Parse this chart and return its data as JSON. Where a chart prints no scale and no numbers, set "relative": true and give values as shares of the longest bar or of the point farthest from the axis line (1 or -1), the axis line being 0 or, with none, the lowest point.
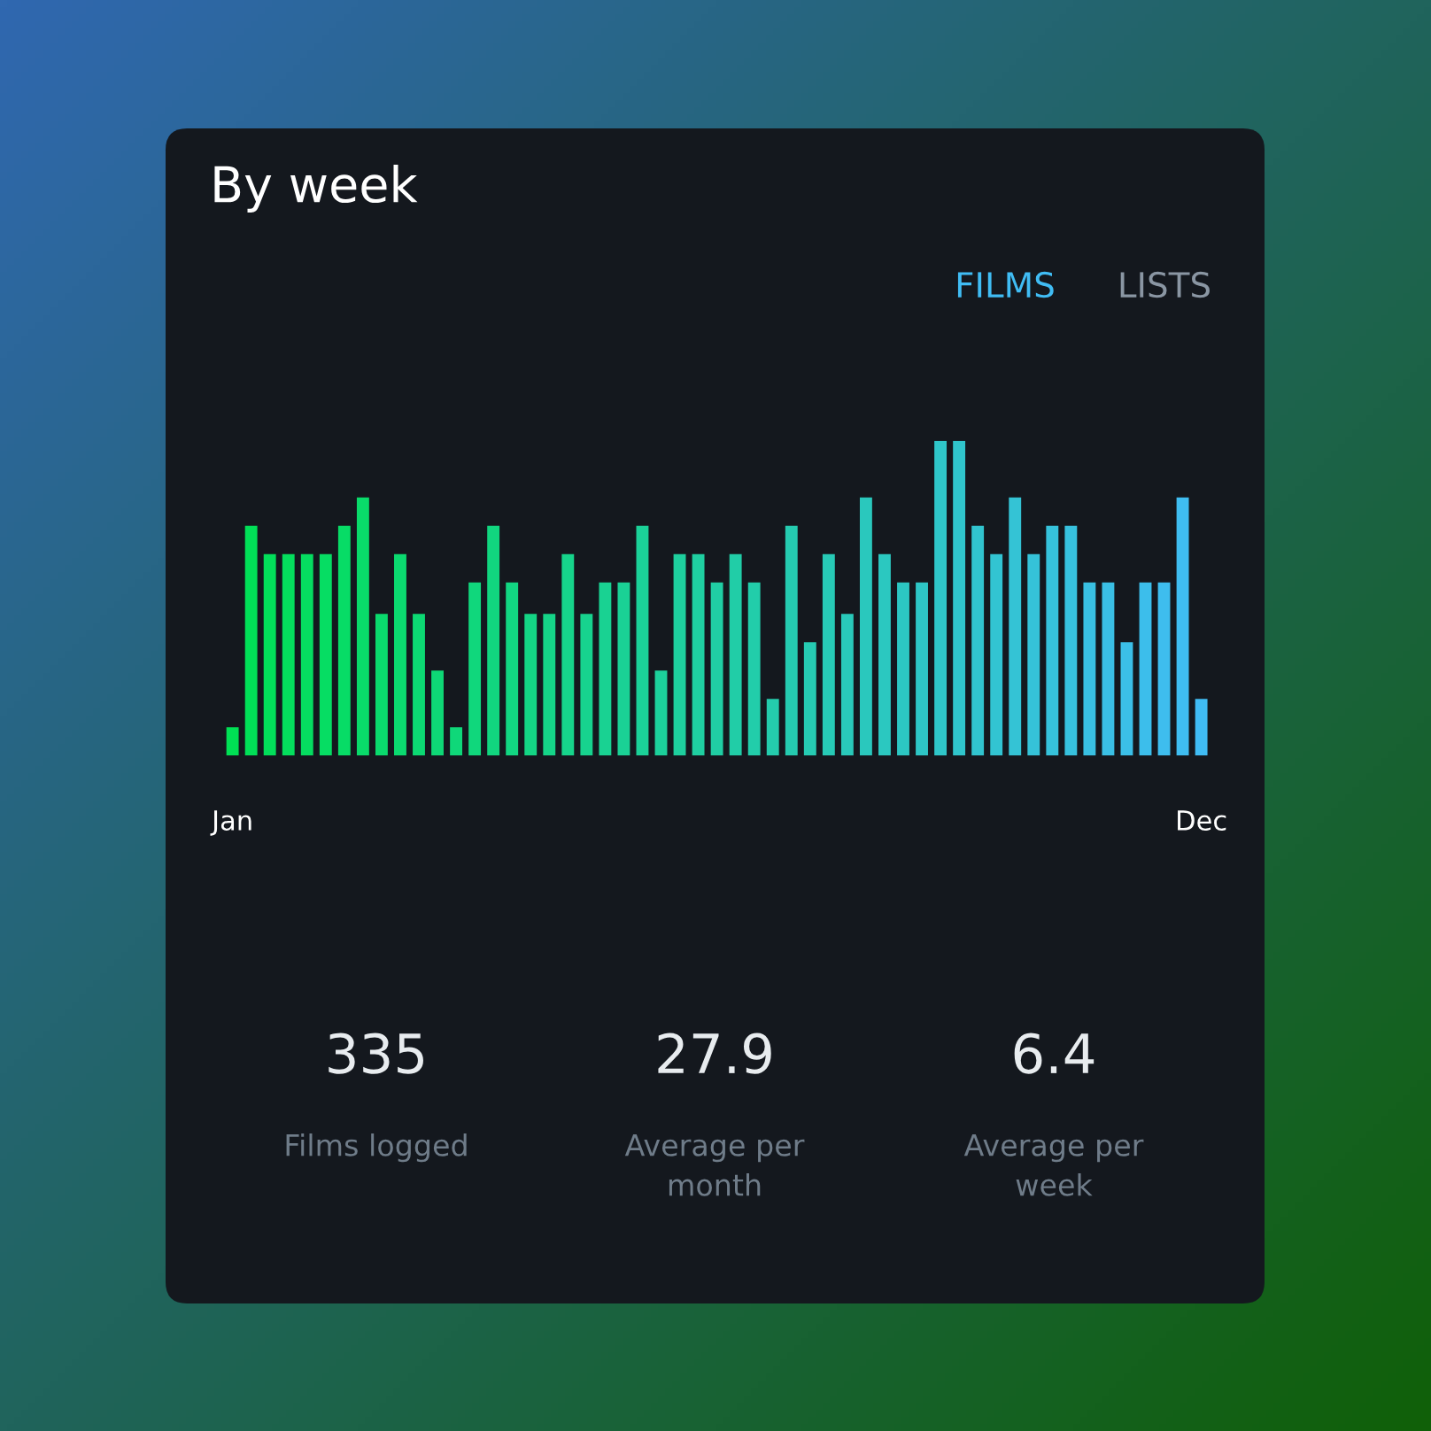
{
  "chart_data": {
    "type": "bar",
    "title": "By week",
    "relative": true,
    "categories": [
      "Jan",
      null,
      null,
      null,
      null,
      null,
      null,
      null,
      null,
      null,
      null,
      null,
      null,
      null,
      null,
      null,
      null,
      null,
      null,
      null,
      null,
      null,
      null,
      null,
      null,
      null,
      null,
      null,
      null,
      null,
      null,
      null,
      null,
      null,
      null,
      null,
      null,
      null,
      null,
      null,
      null,
      null,
      null,
      null,
      null,
      null,
      null,
      null,
      null,
      null,
      null,
      null,
      "Dec"
    ],
    "values": [
      0.09,
      0.73,
      0.64,
      0.64,
      0.64,
      0.64,
      0.73,
      0.82,
      0.45,
      0.64,
      0.45,
      0.27,
      0.09,
      0.55,
      0.73,
      0.55,
      0.45,
      0.45,
      0.64,
      0.45,
      0.55,
      0.55,
      0.73,
      0.27,
      0.64,
      0.64,
      0.55,
      0.64,
      0.55,
      0.18,
      0.73,
      0.36,
      0.64,
      0.45,
      0.82,
      0.64,
      0.55,
      0.55,
      1,
      1,
      0.73,
      0.64,
      0.82,
      0.64,
      0.73,
      0.73,
      0.55,
      0.55,
      0.36,
      0.55,
      0.55,
      0.82,
      0.18
    ],
    "colors": [
      "#00e054",
      "#01df57",
      "#02df5a",
      "#04de5d",
      "#05dd60",
      "#06dd63",
      "#07dc66",
      "#09db6a",
      "#0ada6d",
      "#0bda70",
      "#0cd973",
      "#0ed876",
      "#0fd879",
      "#10d77c",
      "#11d67f",
      "#12d682",
      "#14d585",
      "#15d488",
      "#16d48b",
      "#17d38e",
      "#19d292",
      "#1ad195",
      "#1bd198",
      "#1cd09b",
      "#1ecf9e",
      "#1fcfa1",
      "#20cea4",
      "#21cda7",
      "#22cdaa",
      "#24ccad",
      "#25cbb0",
      "#26cbb3",
      "#27cab6",
      "#29c9ba",
      "#2ac8bd",
      "#2bc8c0",
      "#2cc7c3",
      "#2ec6c6",
      "#2fc6c9",
      "#30c5cc",
      "#31c4cf",
      "#32c4d2",
      "#34c3d5",
      "#35c2d8",
      "#36c2db",
      "#37c1de",
      "#39c0e2",
      "#3abfe5",
      "#3bbfe8",
      "#3cbeeb",
      "#3ebdee",
      "#3fbdf1",
      "#40bcf4"
    ],
    "annotations": [
      "FILMS",
      "LISTS",
      "335",
      "Films logged",
      "27.9",
      "Average per\nmonth",
      "6.4",
      "Average per\nweek"
    ],
    "grid": false,
    "legend": false
  }
}
